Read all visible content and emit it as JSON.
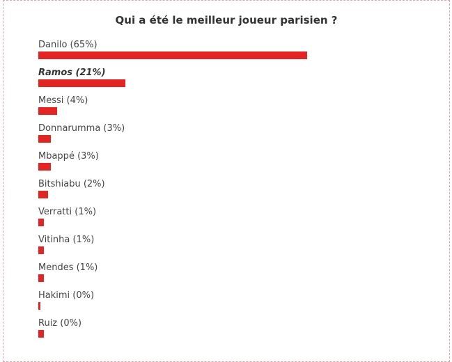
{
  "poll": {
    "title": "Qui a été le meilleur joueur parisien ?",
    "bar_color": "#e52421",
    "options": [
      {
        "label": "Danilo (65%)",
        "player": "Danilo",
        "percent": 65,
        "selected": false
      },
      {
        "label": "Ramos (21%)",
        "player": "Ramos",
        "percent": 21,
        "selected": true
      },
      {
        "label": "Messi (4%)",
        "player": "Messi",
        "percent": 4,
        "selected": false
      },
      {
        "label": "Donnarumma (3%)",
        "player": "Donnarumma",
        "percent": 3,
        "selected": false
      },
      {
        "label": "Mbappé (3%)",
        "player": "Mbappé",
        "percent": 3,
        "selected": false
      },
      {
        "label": "Bitshiabu (2%)",
        "player": "Bitshiabu",
        "percent": 2,
        "selected": false
      },
      {
        "label": "Verratti (1%)",
        "player": "Verratti",
        "percent": 1,
        "selected": false
      },
      {
        "label": "Vitinha (1%)",
        "player": "Vitinha",
        "percent": 1,
        "selected": false
      },
      {
        "label": "Mendes (1%)",
        "player": "Mendes",
        "percent": 1,
        "selected": false
      },
      {
        "label": "Hakimi (0%)",
        "player": "Hakimi",
        "percent": 0,
        "selected": false
      },
      {
        "label": "Ruiz (0%)",
        "player": "Ruiz",
        "percent": 0,
        "selected": false
      }
    ]
  }
}
